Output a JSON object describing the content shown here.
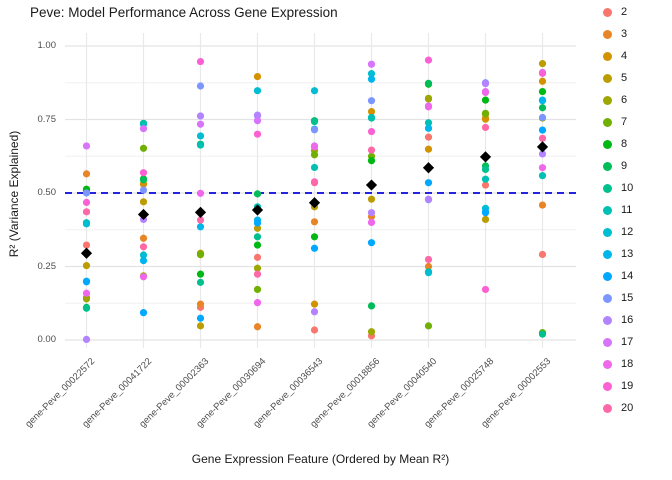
{
  "chart_data": {
    "type": "scatter",
    "title": "Peve: Model Performance Across Gene Expression",
    "xlabel": "Gene Expression Feature (Ordered by Mean R²)",
    "ylabel": "R² (Variance Explained)",
    "categories": [
      "gene-Peve_00022572",
      "gene-Peve_00041722",
      "gene-Peve_00002363",
      "gene-Peve_00030694",
      "gene-Peve_00036543",
      "gene-Peve_00018856",
      "gene-Peve_00040540",
      "gene-Peve_00025748",
      "gene-Peve_00002553"
    ],
    "y_ticks": {
      "labels": [
        "0.00",
        "0.25",
        "0.50",
        "0.75",
        "1.00"
      ],
      "values": [
        0,
        0.25,
        0.5,
        0.75,
        1.0
      ]
    },
    "ylim": [
      -0.045,
      1.045
    ],
    "grid": "on",
    "legend_position": "right",
    "legend": {
      "entries": [
        "2",
        "3",
        "4",
        "5",
        "6",
        "7",
        "8",
        "9",
        "10",
        "11",
        "12",
        "13",
        "14",
        "15",
        "16",
        "17",
        "18",
        "19",
        "20"
      ],
      "colors": [
        "#F8766D",
        "#E88526",
        "#D39200",
        "#BC9D00",
        "#9CA700",
        "#6FB000",
        "#00B813",
        "#00BC59",
        "#00C08E",
        "#00C0B4",
        "#00BDD2",
        "#00B5EC",
        "#00A8FF",
        "#7C96FF",
        "#B483FF",
        "#D873FC",
        "#EF67EB",
        "#FC61D3",
        "#FF68A8"
      ]
    },
    "hline": {
      "y": 0.5,
      "style": "dashed",
      "color": "#2424DE"
    },
    "mean_markers": {
      "shape": "diamond",
      "color": "#000000",
      "values": [
        0.295,
        0.427,
        0.434,
        0.442,
        0.467,
        0.527,
        0.586,
        0.623,
        0.657
      ]
    },
    "series": [
      {
        "name": "2",
        "values": [
          0.323,
          0.53,
          0.111,
          0.281,
          0.034,
          0.014,
          0.69,
          0.527,
          0.291
        ]
      },
      {
        "name": "3",
        "values": [
          0.565,
          0.346,
          0.122,
          0.045,
          0.402,
          0.42,
          0.25,
          0.754,
          0.459
        ]
      },
      {
        "name": "4",
        "values": [
          0.145,
          0.531,
          0.295,
          0.896,
          0.122,
          0.777,
          0.649,
          0.751,
          0.88
        ]
      },
      {
        "name": "5",
        "values": [
          0.253,
          0.47,
          0.048,
          0.38,
          0.453,
          0.479,
          0.82,
          0.41,
          0.94
        ]
      },
      {
        "name": "6",
        "values": [
          0.14,
          0.218,
          0.29,
          0.244,
          0.644,
          0.028,
          0.822,
          0.768,
          0.755
        ]
      },
      {
        "name": "7",
        "values": [
          0.508,
          0.652,
          0.292,
          0.172,
          0.63,
          0.625,
          0.048,
          0.771,
          0.025
        ]
      },
      {
        "name": "8",
        "values": [
          0.513,
          0.548,
          0.224,
          0.323,
          0.351,
          0.61,
          0.87,
          0.816,
          0.845
        ]
      },
      {
        "name": "9",
        "values": [
          0.111,
          0.545,
          0.666,
          0.497,
          0.746,
          0.116,
          0.873,
          0.592,
          0.79
        ]
      },
      {
        "name": "10",
        "values": [
          0.108,
          0.737,
          0.196,
          0.351,
          0.743,
          0.755,
          0.232,
          0.58,
          0.02
        ]
      },
      {
        "name": "11",
        "values": [
          0.399,
          0.734,
          0.663,
          0.453,
          0.587,
          0.757,
          0.739,
          0.547,
          0.559
        ]
      },
      {
        "name": "12",
        "values": [
          0.395,
          0.289,
          0.694,
          0.848,
          0.848,
          0.906,
          0.229,
          0.448,
          0.814
        ]
      },
      {
        "name": "13",
        "values": [
          0.2,
          0.27,
          0.385,
          0.408,
          0.717,
          0.887,
          0.72,
          0.436,
          0.816
        ]
      },
      {
        "name": "14",
        "values": [
          0.198,
          0.093,
          0.074,
          0.398,
          0.312,
          0.331,
          0.535,
          0.433,
          0.714
        ]
      },
      {
        "name": "15",
        "values": [
          0.5,
          0.51,
          0.864,
          0.763,
          0.715,
          0.814,
          0.477,
          0.875,
          0.757
        ]
      },
      {
        "name": "16",
        "values": [
          0.002,
          0.41,
          0.762,
          0.765,
          0.096,
          0.433,
          0.479,
          0.872,
          0.633
        ]
      },
      {
        "name": "17",
        "values": [
          0.66,
          0.719,
          0.734,
          0.746,
          0.66,
          0.938,
          0.796,
          0.845,
          0.91
        ]
      },
      {
        "name": "18",
        "values": [
          0.159,
          0.215,
          0.499,
          0.127,
          0.657,
          0.4,
          0.793,
          0.842,
          0.586
        ]
      },
      {
        "name": "19",
        "values": [
          0.468,
          0.569,
          0.947,
          0.7,
          0.538,
          0.709,
          0.952,
          0.172,
          0.907
        ]
      },
      {
        "name": "20",
        "values": [
          0.436,
          0.317,
          0.408,
          0.224,
          0.535,
          0.646,
          0.274,
          0.723,
          0.686
        ]
      }
    ]
  }
}
